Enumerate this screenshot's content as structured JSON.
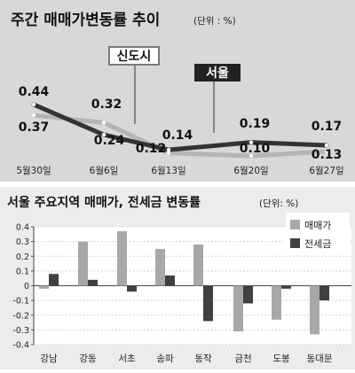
{
  "chart_data": [
    {
      "type": "line",
      "title": "주간 매매가변동률 추이",
      "unit": "(단위 : %)",
      "categories": [
        "5월30일",
        "6월6일",
        "6월13일",
        "6월20일",
        "6월27일"
      ],
      "series": [
        {
          "name": "서울",
          "values": [
            0.44,
            0.24,
            0.14,
            0.19,
            0.17
          ],
          "color": "#333333"
        },
        {
          "name": "신도시",
          "values": [
            0.37,
            0.32,
            0.12,
            0.1,
            0.13
          ],
          "color": "#b4b4b4"
        }
      ],
      "ylim": [
        0,
        0.55
      ],
      "panel_bg": "#d8d8d8"
    },
    {
      "type": "bar",
      "title": "서울 주요지역 매매가, 전세금 변동률",
      "unit": "(단위: %)",
      "categories": [
        "강남",
        "강동",
        "서초",
        "송파",
        "동작",
        "금천",
        "도봉",
        "동대문"
      ],
      "series": [
        {
          "name": "매매가",
          "values": [
            -0.02,
            0.3,
            0.37,
            0.25,
            0.28,
            -0.31,
            -0.23,
            -0.33
          ],
          "color": "#a8a8a8"
        },
        {
          "name": "전세금",
          "values": [
            0.08,
            0.04,
            -0.04,
            0.07,
            -0.24,
            -0.12,
            -0.02,
            -0.1
          ],
          "color": "#404040"
        }
      ],
      "ylim": [
        -0.4,
        0.4
      ],
      "yticks": [
        "0.4",
        "0.3",
        "0.2",
        "0.1",
        "0",
        "-0.1",
        "-0.2",
        "-0.3",
        "-0.4"
      ],
      "panel_bg": "#ececec"
    }
  ]
}
